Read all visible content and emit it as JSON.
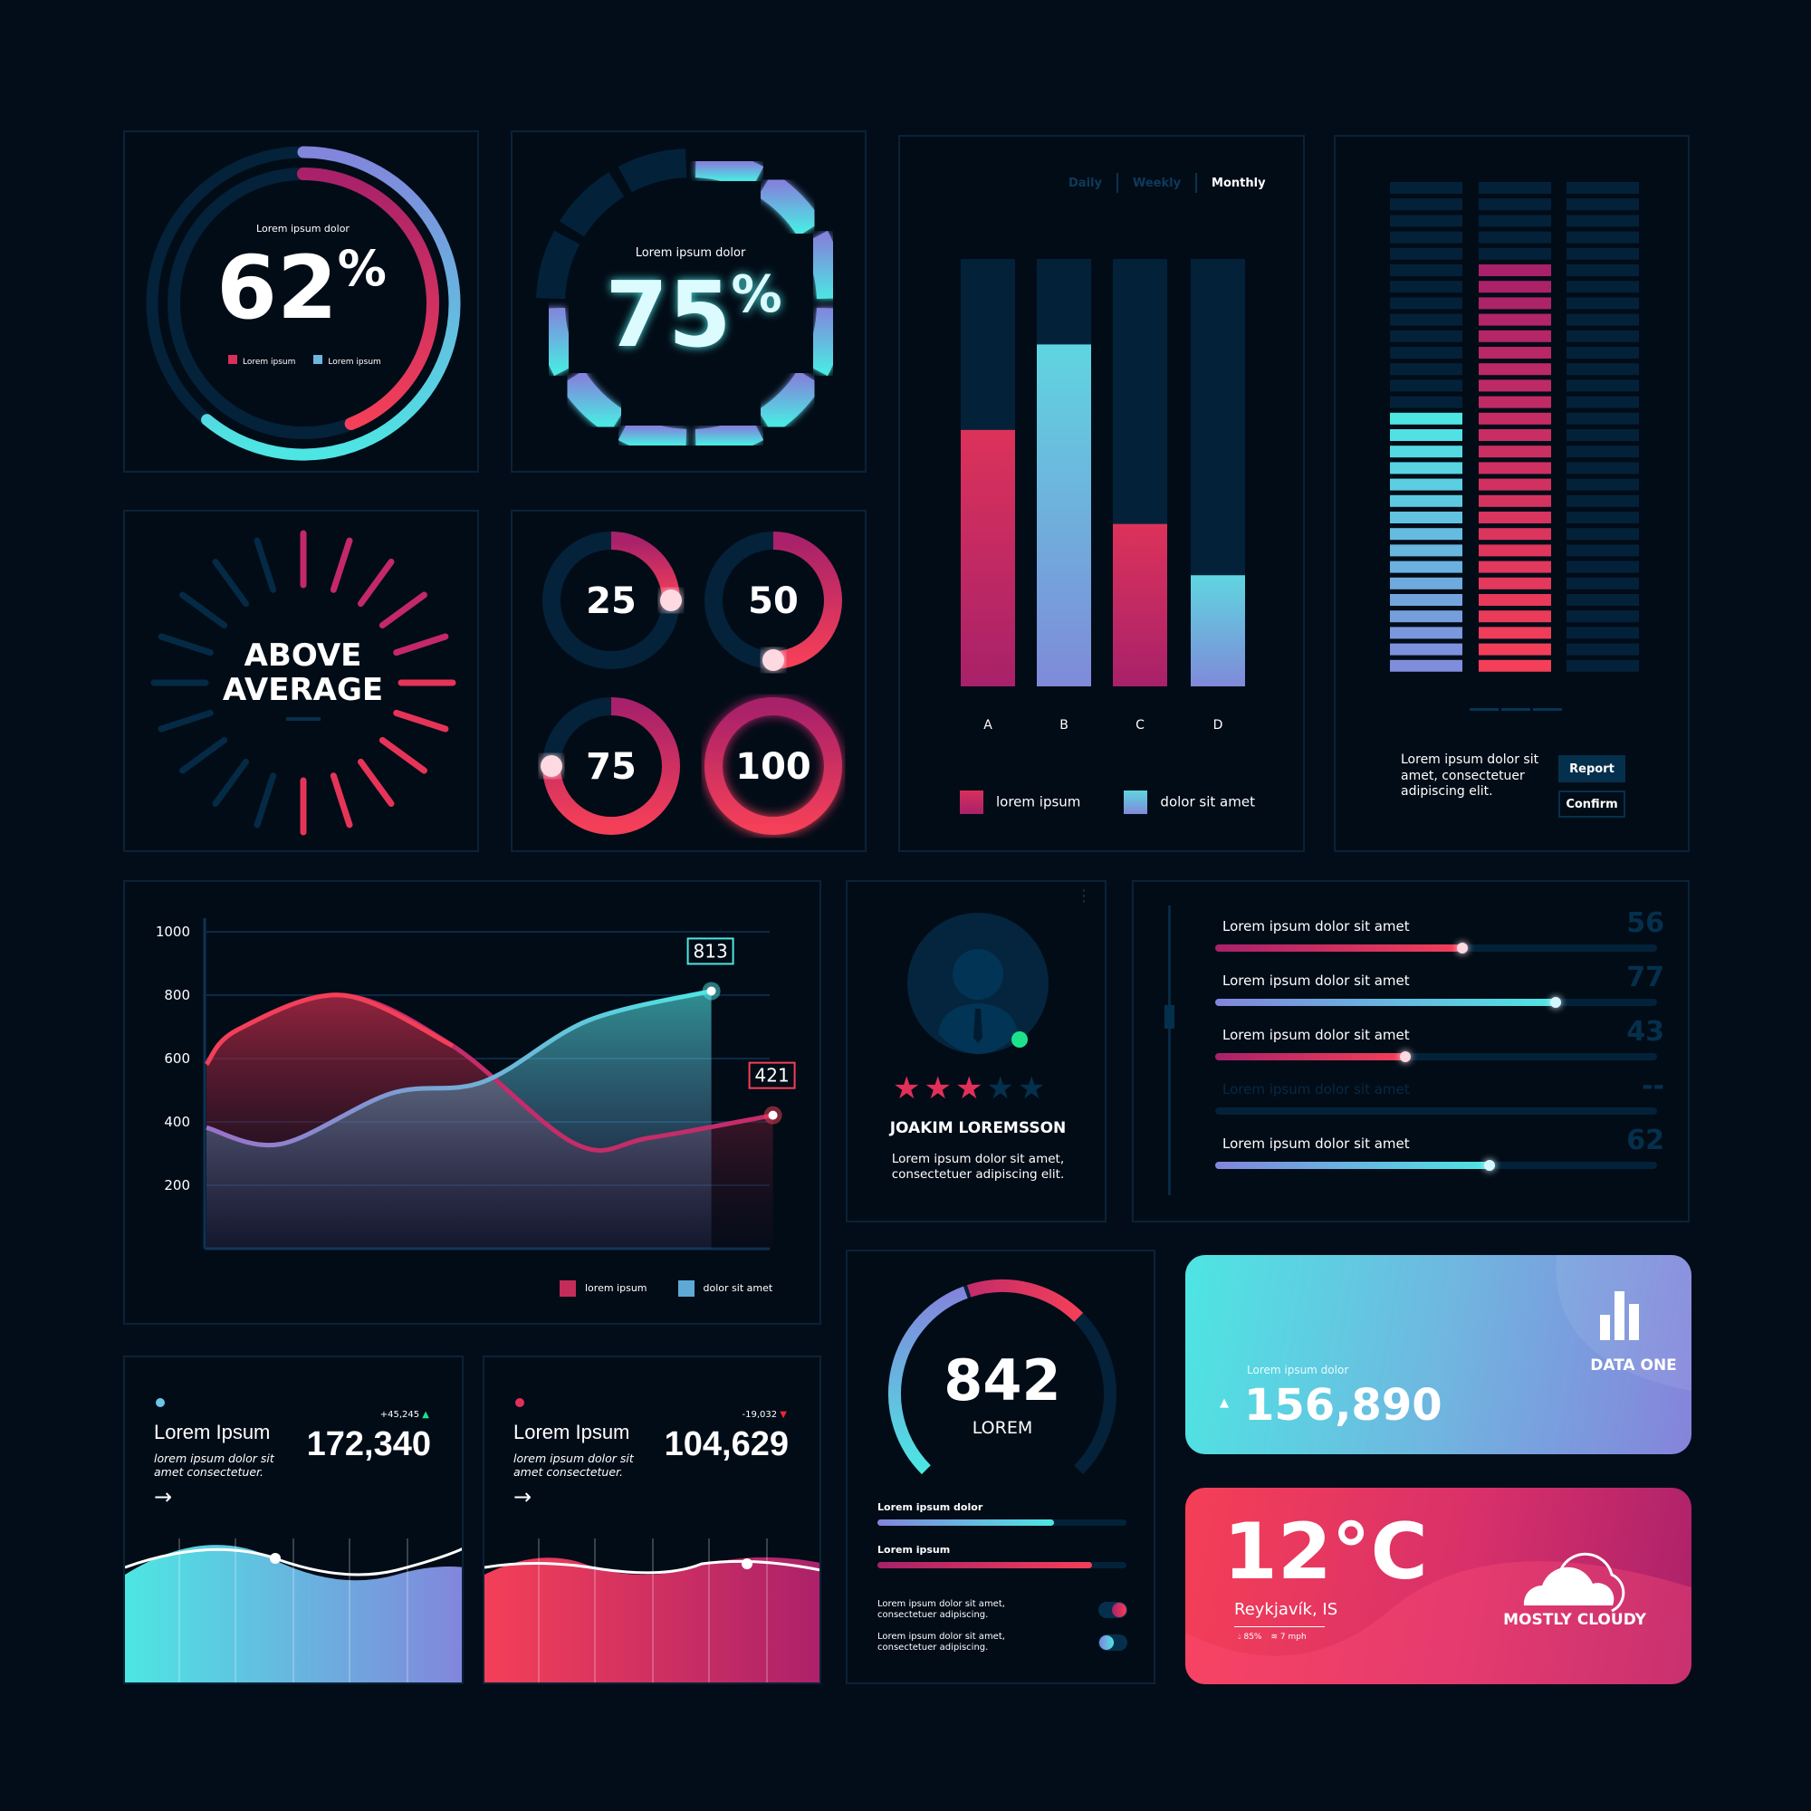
{
  "colors": {
    "bg": "#020d19",
    "track": "#04223a",
    "pink": "#f43f58",
    "magenta": "#a8216a",
    "cyan": "#4de6e3",
    "purple": "#8285dc",
    "green": "#1de28c"
  },
  "donut62": {
    "label": "Lorem ipsum dolor",
    "value": "62",
    "unit": "%",
    "outer_fraction": 0.61,
    "inner_fraction": 0.44,
    "legend": [
      {
        "label": "Lorem ipsum",
        "color": "#d8305a"
      },
      {
        "label": "Lorem ipsum",
        "color": "#6cb6e0"
      }
    ]
  },
  "donut75": {
    "label": "Lorem ipsum dolor",
    "value": "75",
    "unit": "%",
    "segments": 12,
    "lit": 9
  },
  "above": {
    "line1": "ABOVE",
    "line2": "AVERAGE"
  },
  "rings": [
    {
      "value": "25",
      "fraction": 0.25
    },
    {
      "value": "50",
      "fraction": 0.5
    },
    {
      "value": "75",
      "fraction": 0.75
    },
    {
      "value": "100",
      "fraction": 1.0
    }
  ],
  "barchart": {
    "tabs": [
      "Daily",
      "Weekly",
      "Monthly"
    ],
    "active_tab": "Monthly",
    "chart_data": {
      "type": "bar",
      "categories": [
        "A",
        "B",
        "C",
        "D"
      ],
      "values": [
        60,
        80,
        38,
        26
      ],
      "ylim": [
        0,
        100
      ],
      "series_colors": [
        "pink",
        "blue",
        "pink",
        "blue"
      ],
      "legend": [
        "lorem ipsum",
        "dolor sit amet"
      ]
    }
  },
  "equalizer": {
    "segments": 30,
    "levels": [
      16,
      25,
      0
    ],
    "text": "Lorem ipsum dolor sit amet, consectetuer adipiscing elit.",
    "report": "Report",
    "confirm": "Confirm"
  },
  "linechart": {
    "chart_data": {
      "type": "area",
      "yticks": [
        "1000",
        "800",
        "600",
        "400",
        "200"
      ],
      "ylim": [
        0,
        1000
      ],
      "grid": true,
      "series": [
        {
          "name": "dolor sit amet",
          "points": [
            [
              0,
              382
            ],
            [
              12,
              330
            ],
            [
              30,
              490
            ],
            [
              45,
              527
            ],
            [
              62,
              720
            ],
            [
              82,
              813
            ]
          ],
          "callout": "813"
        },
        {
          "name": "lorem ipsum",
          "points": [
            [
              0,
              582
            ],
            [
              5,
              690
            ],
            [
              22,
              800
            ],
            [
              40,
              640
            ],
            [
              60,
              330
            ],
            [
              72,
              350
            ],
            [
              92,
              421
            ]
          ],
          "callout": "421"
        }
      ],
      "legend": [
        "lorem ipsum",
        "dolor sit amet"
      ],
      "legend_position": "bottom-right"
    }
  },
  "profile": {
    "name": "JOAKIM LOREMSSON",
    "description": "Lorem ipsum dolor sit amet, consectetuer adipiscing elit.",
    "rating": 3,
    "max_rating": 5,
    "status": "online"
  },
  "sliders": [
    {
      "label": "Lorem ipsum dolor sit amet",
      "value": 56,
      "display": "56",
      "style": "pink"
    },
    {
      "label": "Lorem ipsum dolor sit amet",
      "value": 77,
      "display": "77",
      "style": "blue"
    },
    {
      "label": "Lorem ipsum dolor sit amet",
      "value": 43,
      "display": "43",
      "style": "pink"
    },
    {
      "label": "Lorem ipsum dolor sit amet",
      "value": 0,
      "display": "--",
      "style": "disabled"
    },
    {
      "label": "Lorem ipsum dolor sit amet",
      "value": 62,
      "display": "62",
      "style": "blue"
    }
  ],
  "stats": [
    {
      "title": "Lorem Ipsum",
      "desc": "lorem ipsum dolor sit amet consectetuer.",
      "value": "172,340",
      "delta": "+45,245",
      "trend": "up"
    },
    {
      "title": "Lorem Ipsum",
      "desc": "lorem ipsum dolor sit amet consectetuer.",
      "value": "104,629",
      "delta": "-19,032",
      "trend": "down"
    }
  ],
  "gauge": {
    "value": "842",
    "label": "LOREM",
    "bars": [
      {
        "label": "Lorem ipsum dolor",
        "fraction": 0.71
      },
      {
        "label": "Lorem ipsum",
        "fraction": 0.86
      }
    ],
    "toggles": [
      {
        "text": "Lorem ipsum dolor sit amet, consectetuer adipiscing.",
        "on": true
      },
      {
        "text": "Lorem ipsum dolor sit amet, consectetuer adipiscing.",
        "on": false
      }
    ]
  },
  "datacard": {
    "label": "Lorem ipsum dolor",
    "value": "156,890",
    "title": "DATA ONE"
  },
  "weather": {
    "temp": "12°C",
    "city": "Reykjavík, IS",
    "humidity": "85%",
    "wind": "7 mph",
    "condition": "MOSTLY CLOUDY"
  }
}
